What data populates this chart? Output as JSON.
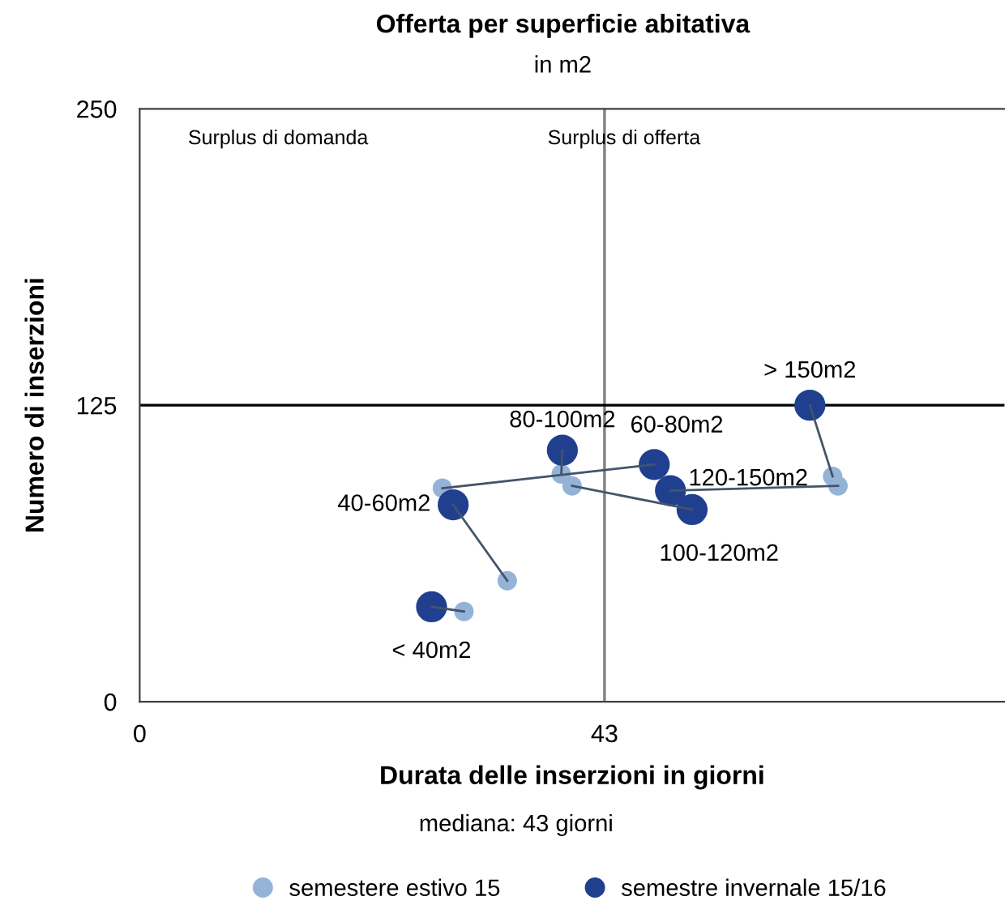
{
  "chart_data": {
    "type": "scatter",
    "title": "Offerta per superficie abitativa",
    "subtitle": "in m2",
    "xlabel": "Durata delle inserzioni in giorni",
    "ylabel": "Numero di inserzioni",
    "xlim": [
      0,
      80
    ],
    "ylim": [
      0,
      250
    ],
    "xticks": [
      0,
      43
    ],
    "yticks": [
      0,
      125,
      250
    ],
    "grid": false,
    "legend": "bottom",
    "marker": "circle",
    "ref_lines": [
      {
        "axis": "x",
        "value": 43,
        "color": "#7f7f7f"
      },
      {
        "axis": "y",
        "value": 125,
        "color": "#000000"
      }
    ],
    "annotations": [
      "Surplus di domanda",
      "Surplus di offerta",
      "mediana: 43 giorni",
      {
        "text": "< 40m2",
        "x": 27.0,
        "y": 40
      },
      {
        "text": "40-60m2",
        "x": 29.0,
        "y": 83
      },
      {
        "text": "60-80m2",
        "x": 47.6,
        "y": 100
      },
      {
        "text": "80-100m2",
        "x": 39.1,
        "y": 106
      },
      {
        "text": "100-120m2",
        "x": 51.1,
        "y": 81
      },
      {
        "text": "120-150m2",
        "x": 49.1,
        "y": 89
      },
      {
        "text": "> 150m2",
        "x": 62.0,
        "y": 125
      }
    ],
    "series": [
      {
        "type": "line",
        "marker": "none",
        "color": "#44546a",
        "x": [
          30.0,
          27.0
        ],
        "values": [
          38,
          40
        ]
      },
      {
        "type": "line",
        "marker": "none",
        "color": "#44546a",
        "x": [
          34.0,
          29.0
        ],
        "values": [
          51,
          83
        ]
      },
      {
        "type": "line",
        "marker": "none",
        "color": "#44546a",
        "x": [
          28.0,
          47.6
        ],
        "values": [
          90,
          100
        ]
      },
      {
        "type": "line",
        "marker": "none",
        "color": "#44546a",
        "x": [
          39.0,
          39.1
        ],
        "values": [
          96,
          106
        ]
      },
      {
        "type": "line",
        "marker": "none",
        "color": "#44546a",
        "x": [
          40.0,
          51.1
        ],
        "values": [
          91,
          81
        ]
      },
      {
        "type": "line",
        "marker": "none",
        "color": "#44546a",
        "x": [
          64.6,
          49.1
        ],
        "values": [
          91,
          89
        ]
      },
      {
        "type": "line",
        "marker": "none",
        "color": "#44546a",
        "x": [
          64.1,
          62.0
        ],
        "values": [
          95,
          125
        ]
      },
      {
        "name": "semestere estivo 15",
        "color": "#95b3d7",
        "x": [
          30.0,
          34.0,
          28.0,
          39.0,
          40.0,
          64.6,
          64.1
        ],
        "values": [
          38,
          51,
          90,
          96,
          91,
          91,
          95
        ]
      },
      {
        "name": "semestre invernale 15/16",
        "color": "#203f8f",
        "x": [
          27.0,
          29.0,
          47.6,
          39.1,
          51.1,
          49.1,
          62.0
        ],
        "values": [
          40,
          83,
          100,
          106,
          81,
          89,
          125
        ]
      }
    ]
  }
}
